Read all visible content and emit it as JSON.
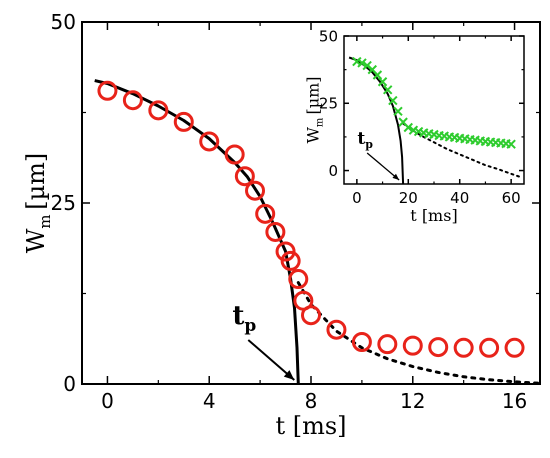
{
  "chart_data": [
    {
      "type": "scatter",
      "title": "",
      "xlabel": "t [ms]",
      "ylabel": "W",
      "ylabel_sub": "m",
      "ylabel_unit": "[µm]",
      "xlim": [
        -1,
        17
      ],
      "ylim": [
        0,
        50
      ],
      "xticks": [
        0,
        4,
        8,
        12,
        16
      ],
      "yticks": [
        0,
        25,
        50
      ],
      "annotation": {
        "text": "t",
        "sub": "p",
        "x": 7.5,
        "y": 0
      },
      "series": [
        {
          "kind": "markers",
          "marker": "circle",
          "color": "#e8231a",
          "x": [
            0,
            1,
            2,
            3,
            4,
            5,
            5.4,
            5.8,
            6.2,
            6.6,
            7.0,
            7.2,
            7.5,
            7.7,
            8.0,
            9.0,
            10.0,
            11.0,
            12.0,
            13.0,
            14.0,
            15.0,
            16.0
          ],
          "y": [
            40.5,
            39.2,
            37.8,
            36.2,
            33.5,
            31.7,
            28.7,
            26.7,
            23.5,
            21.0,
            18.3,
            17.0,
            14.5,
            11.5,
            9.5,
            7.5,
            5.8,
            5.5,
            5.3,
            5.1,
            5.0,
            5.0,
            5.0
          ]
        },
        {
          "kind": "line",
          "style": "solid",
          "color": "#000000",
          "x": [
            -0.5,
            0,
            1,
            2,
            3,
            4,
            5,
            5.5,
            6,
            6.5,
            7,
            7.2,
            7.35,
            7.45,
            7.5
          ],
          "y": [
            41.9,
            41.5,
            40.1,
            38.4,
            36.4,
            33.9,
            30.6,
            28.6,
            25.9,
            22.3,
            18.3,
            14.5,
            10.5,
            5.0,
            0
          ]
        },
        {
          "kind": "line",
          "style": "dotted",
          "color": "#000000",
          "x": [
            7.5,
            8,
            9,
            10,
            11,
            12,
            13,
            14,
            15,
            16,
            17
          ],
          "y": [
            14.0,
            11.0,
            7.3,
            5.0,
            3.5,
            2.4,
            1.6,
            1.0,
            0.6,
            0.3,
            0.1
          ]
        }
      ]
    },
    {
      "type": "scatter",
      "title": "",
      "xlabel": "t [ms]",
      "ylabel": "W",
      "ylabel_sub": "m",
      "ylabel_unit": "[µm]",
      "xlim": [
        -5,
        65
      ],
      "ylim": [
        -5,
        50
      ],
      "xticks": [
        0,
        20,
        40,
        60
      ],
      "yticks": [
        0,
        25,
        50
      ],
      "annotation": {
        "text": "t",
        "sub": "p",
        "x": 18,
        "y": -5
      },
      "series": [
        {
          "kind": "markers",
          "marker": "x",
          "color": "#2ecc2e",
          "x": [
            0,
            2,
            4,
            6,
            8,
            10,
            12,
            14,
            16,
            18,
            20,
            22,
            24,
            26,
            28,
            30,
            32,
            34,
            36,
            38,
            40,
            42,
            44,
            46,
            48,
            50,
            52,
            54,
            56,
            58,
            60
          ],
          "y": [
            40.5,
            40.0,
            39.0,
            37.5,
            35.5,
            33.0,
            30.0,
            26.0,
            22.0,
            18.0,
            16.0,
            15.0,
            14.5,
            14.0,
            13.7,
            13.4,
            13.0,
            12.8,
            12.5,
            12.3,
            12.0,
            11.8,
            11.5,
            11.3,
            11.0,
            10.8,
            10.6,
            10.4,
            10.2,
            10.0,
            9.8
          ]
        },
        {
          "kind": "line",
          "style": "solid",
          "color": "#000000",
          "x": [
            -3,
            0,
            3,
            6,
            9,
            12,
            14,
            16,
            17,
            17.6,
            18
          ],
          "y": [
            42.0,
            41.0,
            39.0,
            36.5,
            33.0,
            28.5,
            24.0,
            17.0,
            11.0,
            5.0,
            -5
          ]
        },
        {
          "kind": "line",
          "style": "dotted",
          "color": "#000000",
          "x": [
            18,
            20,
            25,
            30,
            35,
            40,
            45,
            50,
            55,
            60,
            63
          ],
          "y": [
            17.5,
            16.0,
            13.0,
            10.5,
            8.0,
            6.0,
            4.0,
            2.0,
            0.5,
            -1.2,
            -2.2
          ]
        }
      ]
    }
  ]
}
